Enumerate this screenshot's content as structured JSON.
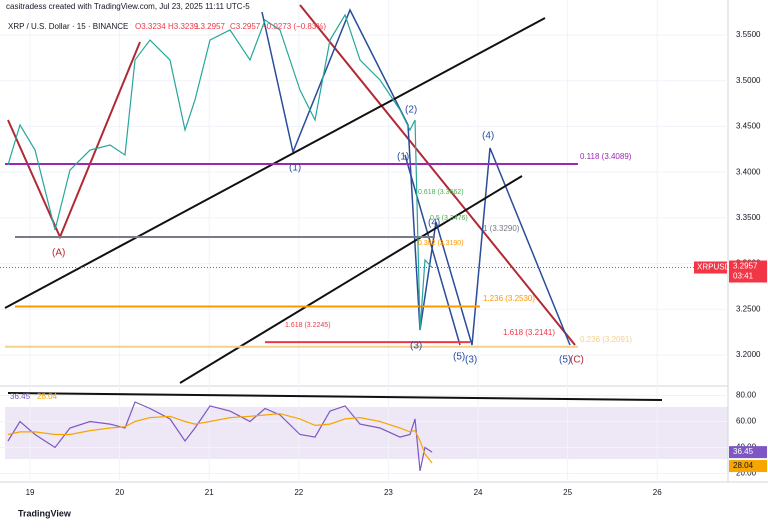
{
  "header": {
    "credit": "casitradess created with TradingView.com, Jul 23, 2025 11:11 UTC-5",
    "symbol": "XRP / U.S. Dollar · 15 · BINANCE",
    "ohlc": [
      "O3.3234",
      "H3.3239",
      "L3.2957",
      "C3.2957",
      "−0.0273 (−0.83%)"
    ]
  },
  "chart_data": [
    {
      "type": "line",
      "x": [
        18.754,
        18.888,
        19.056,
        19.279,
        19.446,
        19.67,
        19.893,
        20.06,
        20.172,
        20.339,
        20.562,
        20.73,
        20.841,
        21.009,
        21.232,
        21.455,
        21.623,
        21.79,
        22.013,
        22.181,
        22.348,
        22.516,
        22.683,
        22.906,
        23.129,
        23.241,
        23.297,
        23.353,
        23.408,
        23.487
      ],
      "series": [
        {
          "name": "XRPUSD",
          "color": "#26a69a",
          "values": [
            3.4078,
            3.4516,
            3.4242,
            3.3367,
            3.4023,
            3.4242,
            3.4297,
            3.4188,
            3.5227,
            3.5445,
            3.5227,
            3.4461,
            3.4789,
            3.5445,
            3.5555,
            3.5227,
            3.5664,
            3.5555,
            3.4898,
            3.457,
            3.5445,
            3.5719,
            3.5227,
            3.5008,
            3.468,
            3.4461,
            3.457,
            3.2273,
            3.3039,
            3.2957
          ]
        }
      ],
      "last_value": 3.2957,
      "countdown": "03:41",
      "xlim": [
        18.665,
        26.79
      ],
      "xticks": [
        19,
        20,
        21,
        22,
        23,
        24,
        25,
        26
      ],
      "ylim": [
        3.1672,
        3.5828
      ],
      "yticks": [
        {
          "value": 3.2,
          "label": "3.2000"
        },
        {
          "value": 3.25,
          "label": "3.2500"
        },
        {
          "value": 3.3,
          "label": "3.3000"
        },
        {
          "value": 3.35,
          "label": "3.3500"
        },
        {
          "value": 3.4,
          "label": "3.4000"
        },
        {
          "value": 3.45,
          "label": "3.4500"
        },
        {
          "value": 3.5,
          "label": "3.5000"
        },
        {
          "value": 3.55,
          "label": "3.5500"
        }
      ],
      "levels": [
        {
          "value": 3.4089,
          "label": "0.118 (3.4089)",
          "color": "#9c27b0"
        },
        {
          "value": 3.329,
          "label": "1 (3.3290)",
          "color": "#787b86"
        },
        {
          "value": 3.253,
          "label": "1.236 (3.2530)",
          "color": "#ff9800"
        },
        {
          "value": 3.2141,
          "label": "1.618 (3.2141)",
          "color": "#f23645"
        },
        {
          "value": 3.2091,
          "label": "0.236 (3.2091)",
          "color": "#f5d08a"
        }
      ],
      "annotations": [
        {
          "text": "(A)",
          "color": "#b22833"
        },
        {
          "text": "(1)",
          "color": "#2a4d9b"
        },
        {
          "text": "(1)",
          "color": "#2a4d9b"
        },
        {
          "text": "(2)",
          "color": "#2a4d9b"
        },
        {
          "text": "(3)",
          "color": "#2a4d9b"
        },
        {
          "text": "(4)",
          "color": "#2a4d9b"
        },
        {
          "text": "(4)",
          "color": "#2a4d9b"
        },
        {
          "text": "(5)",
          "color": "#2a4d9b"
        },
        {
          "text": "(3)",
          "color": "#2a4d9b"
        },
        {
          "text": "(5)",
          "color": "#2a4d9b"
        },
        {
          "text": "(C)",
          "color": "#b22833"
        },
        {
          "text": "0.618 (3.3662)",
          "color": "#4caf50"
        },
        {
          "text": "0.5 (3.3476)",
          "color": "#4caf50"
        },
        {
          "text": "0.382 (3.3190)",
          "color": "#ff9800"
        },
        {
          "text": "1.618 (3.2245)",
          "color": "#f23645"
        }
      ]
    },
    {
      "type": "line",
      "x": [
        18.754,
        18.888,
        19.056,
        19.279,
        19.446,
        19.67,
        19.893,
        20.06,
        20.172,
        20.339,
        20.562,
        20.73,
        20.841,
        21.009,
        21.232,
        21.455,
        21.623,
        21.79,
        22.013,
        22.181,
        22.348,
        22.516,
        22.683,
        22.906,
        23.129,
        23.241,
        23.297,
        23.353,
        23.408,
        23.487
      ],
      "series": [
        {
          "color": "#7e57c2",
          "values": [
            45,
            60,
            50,
            40,
            55,
            60,
            58,
            55,
            75,
            70,
            62,
            45,
            55,
            72,
            68,
            60,
            70,
            65,
            50,
            48,
            68,
            72,
            58,
            55,
            48,
            50,
            62,
            22,
            40,
            36.45
          ]
        },
        {
          "color": "#f7a600",
          "values": [
            50,
            52,
            52,
            50,
            50,
            53,
            55,
            56,
            60,
            63,
            64,
            60,
            58,
            60,
            63,
            64,
            65,
            66,
            62,
            57,
            58,
            62,
            63,
            60,
            55,
            52,
            53,
            45,
            35,
            28.04
          ]
        }
      ],
      "xlim": [
        18.665,
        26.79
      ],
      "ylim": [
        15,
        85
      ],
      "yticks": [
        {
          "value": 20,
          "label": "20.00"
        },
        {
          "value": 40,
          "label": "40.00"
        },
        {
          "value": 60,
          "label": "60.00"
        },
        {
          "value": 80,
          "label": "80.00"
        }
      ]
    }
  ],
  "footer": {
    "brand": "TradingView"
  }
}
